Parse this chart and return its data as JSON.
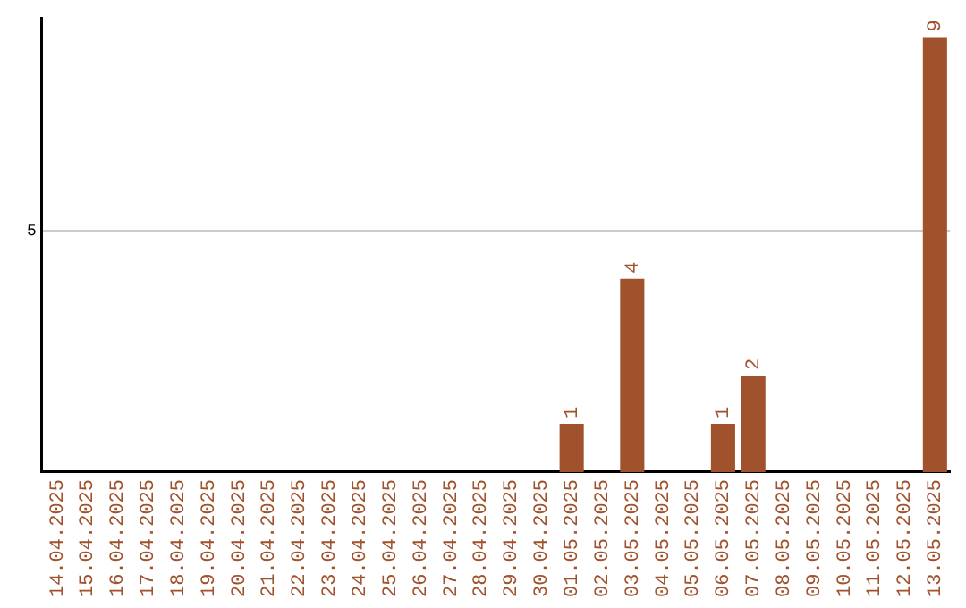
{
  "chart_data": {
    "type": "bar",
    "categories": [
      "14.04.2025",
      "15.04.2025",
      "16.04.2025",
      "17.04.2025",
      "18.04.2025",
      "19.04.2025",
      "20.04.2025",
      "21.04.2025",
      "22.04.2025",
      "23.04.2025",
      "24.04.2025",
      "25.04.2025",
      "26.04.2025",
      "27.04.2025",
      "28.04.2025",
      "29.04.2025",
      "30.04.2025",
      "01.05.2025",
      "02.05.2025",
      "03.05.2025",
      "04.05.2025",
      "05.05.2025",
      "06.05.2025",
      "07.05.2025",
      "08.05.2025",
      "09.05.2025",
      "10.05.2025",
      "11.05.2025",
      "12.05.2025",
      "13.05.2025"
    ],
    "values": [
      null,
      null,
      null,
      null,
      null,
      null,
      null,
      null,
      null,
      null,
      null,
      null,
      null,
      null,
      null,
      null,
      null,
      1,
      null,
      4,
      null,
      null,
      1,
      2,
      null,
      null,
      null,
      null,
      null,
      9
    ],
    "data_labels": true,
    "color": "#a0522d",
    "ylim": [
      0,
      9.4
    ],
    "yticks": [
      5
    ],
    "grid": "y",
    "legend": false
  }
}
